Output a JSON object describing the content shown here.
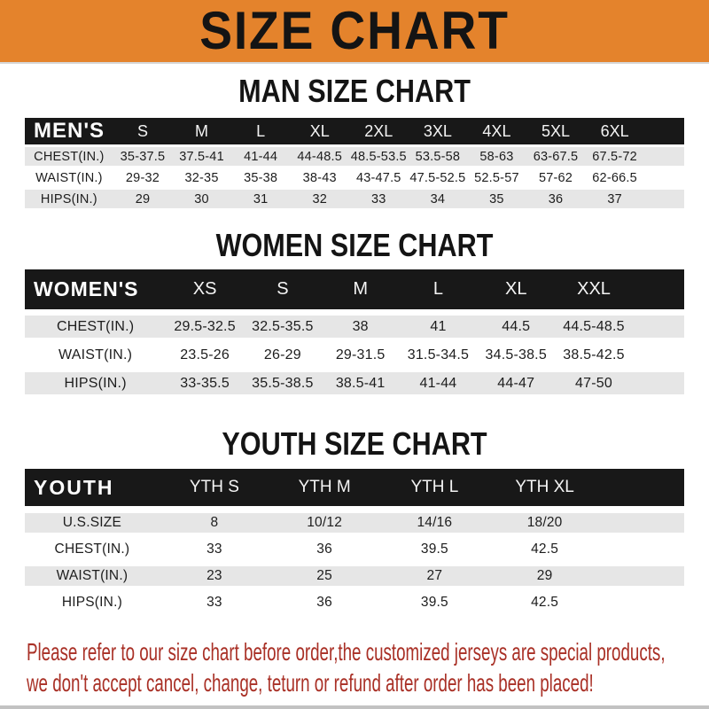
{
  "banner": {
    "title": "SIZE CHART"
  },
  "sections": [
    {
      "heading": "MAN SIZE CHART",
      "label": "MEN'S",
      "columns": [
        "S",
        "M",
        "L",
        "XL",
        "2XL",
        "3XL",
        "4XL",
        "5XL",
        "6XL"
      ],
      "rows": [
        {
          "label": "CHEST(IN.)",
          "values": [
            "35-37.5",
            "37.5-41",
            "41-44",
            "44-48.5",
            "48.5-53.5",
            "53.5-58",
            "58-63",
            "63-67.5",
            "67.5-72"
          ]
        },
        {
          "label": "WAIST(IN.)",
          "values": [
            "29-32",
            "32-35",
            "35-38",
            "38-43",
            "43-47.5",
            "47.5-52.5",
            "52.5-57",
            "57-62",
            "62-66.5"
          ]
        },
        {
          "label": "HIPS(IN.)",
          "values": [
            "29",
            "30",
            "31",
            "32",
            "33",
            "34",
            "35",
            "36",
            "37"
          ]
        }
      ]
    },
    {
      "heading": "WOMEN SIZE CHART",
      "label": "WOMEN'S",
      "columns": [
        "XS",
        "S",
        "M",
        "L",
        "XL",
        "XXL"
      ],
      "rows": [
        {
          "label": "CHEST(IN.)",
          "values": [
            "29.5-32.5",
            "32.5-35.5",
            "38",
            "41",
            "44.5",
            "44.5-48.5"
          ]
        },
        {
          "label": "WAIST(IN.)",
          "values": [
            "23.5-26",
            "26-29",
            "29-31.5",
            "31.5-34.5",
            "34.5-38.5",
            "38.5-42.5"
          ]
        },
        {
          "label": "HIPS(IN.)",
          "values": [
            "33-35.5",
            "35.5-38.5",
            "38.5-41",
            "41-44",
            "44-47",
            "47-50"
          ]
        }
      ]
    },
    {
      "heading": "YOUTH SIZE CHART",
      "label": "YOUTH",
      "columns": [
        "YTH S",
        "YTH M",
        "YTH L",
        "YTH XL"
      ],
      "rows": [
        {
          "label": "U.S.SIZE",
          "values": [
            "8",
            "10/12",
            "14/16",
            "18/20"
          ]
        },
        {
          "label": "CHEST(IN.)",
          "values": [
            "33",
            "36",
            "39.5",
            "42.5"
          ]
        },
        {
          "label": "WAIST(IN.)",
          "values": [
            "23",
            "25",
            "27",
            "29"
          ]
        },
        {
          "label": "HIPS(IN.)",
          "values": [
            "33",
            "36",
            "39.5",
            "42.5"
          ]
        }
      ]
    }
  ],
  "footer": {
    "line1": "Please refer to our size chart before order,the customized jerseys are special products,",
    "line2": "we don't accept cancel, change, teturn or refund after order has been placed!"
  },
  "colors": {
    "banner_bg": "#E4832C",
    "bar_bg": "#181818",
    "row_gray": "#E6E6E6",
    "footnote_red": "#A93026"
  }
}
